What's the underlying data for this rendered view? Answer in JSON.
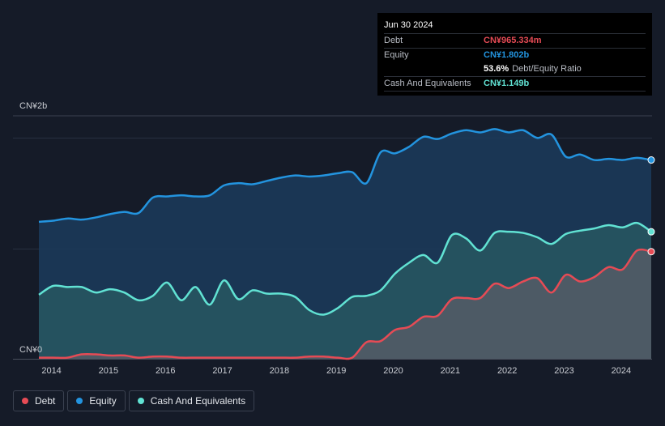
{
  "colors": {
    "debt": "#e64b55",
    "equity": "#2394df",
    "cash": "#61e2d3",
    "background": "#151b28"
  },
  "tooltip": {
    "date": "Jun 30 2024",
    "debt_label": "Debt",
    "debt_value": "CN¥965.334m",
    "equity_label": "Equity",
    "equity_value": "CN¥1.802b",
    "ratio_value": "53.6%",
    "ratio_label": "Debt/Equity Ratio",
    "cash_label": "Cash And Equivalents",
    "cash_value": "CN¥1.149b"
  },
  "legend": {
    "debt": "Debt",
    "equity": "Equity",
    "cash": "Cash And Equivalents"
  },
  "chart_data": {
    "type": "area",
    "title": "",
    "xlabel": "",
    "ylabel": "CN¥",
    "x_range": [
      2013.75,
      2024.5
    ],
    "ylim": [
      0,
      2.2
    ],
    "y_tick_labels": [
      {
        "value": 0,
        "label": "CN¥0"
      },
      {
        "value": 2,
        "label": "CN¥2b"
      }
    ],
    "x_ticks": [
      {
        "value": 2014,
        "label": "2014"
      },
      {
        "value": 2015,
        "label": "2015"
      },
      {
        "value": 2016,
        "label": "2016"
      },
      {
        "value": 2017,
        "label": "2017"
      },
      {
        "value": 2018,
        "label": "2018"
      },
      {
        "value": 2019,
        "label": "2019"
      },
      {
        "value": 2020,
        "label": "2020"
      },
      {
        "value": 2021,
        "label": "2021"
      },
      {
        "value": 2022,
        "label": "2022"
      },
      {
        "value": 2023,
        "label": "2023"
      },
      {
        "value": 2024,
        "label": "2024"
      }
    ],
    "gridlines": [
      0,
      1,
      2
    ],
    "units": "CN¥ billions",
    "series": [
      {
        "name": "Equity",
        "key": "equity",
        "points": [
          [
            2013.75,
            1.24
          ],
          [
            2014.0,
            1.25
          ],
          [
            2014.25,
            1.27
          ],
          [
            2014.5,
            1.26
          ],
          [
            2014.75,
            1.28
          ],
          [
            2015.0,
            1.31
          ],
          [
            2015.25,
            1.33
          ],
          [
            2015.5,
            1.32
          ],
          [
            2015.75,
            1.46
          ],
          [
            2016.0,
            1.47
          ],
          [
            2016.25,
            1.48
          ],
          [
            2016.5,
            1.47
          ],
          [
            2016.75,
            1.48
          ],
          [
            2017.0,
            1.57
          ],
          [
            2017.25,
            1.59
          ],
          [
            2017.5,
            1.58
          ],
          [
            2017.75,
            1.61
          ],
          [
            2018.0,
            1.64
          ],
          [
            2018.25,
            1.66
          ],
          [
            2018.5,
            1.65
          ],
          [
            2018.75,
            1.66
          ],
          [
            2019.0,
            1.68
          ],
          [
            2019.25,
            1.69
          ],
          [
            2019.5,
            1.59
          ],
          [
            2019.75,
            1.87
          ],
          [
            2020.0,
            1.86
          ],
          [
            2020.25,
            1.92
          ],
          [
            2020.5,
            2.01
          ],
          [
            2020.75,
            1.99
          ],
          [
            2021.0,
            2.04
          ],
          [
            2021.25,
            2.07
          ],
          [
            2021.5,
            2.05
          ],
          [
            2021.75,
            2.08
          ],
          [
            2022.0,
            2.05
          ],
          [
            2022.25,
            2.07
          ],
          [
            2022.5,
            2.0
          ],
          [
            2022.75,
            2.03
          ],
          [
            2023.0,
            1.83
          ],
          [
            2023.25,
            1.85
          ],
          [
            2023.5,
            1.8
          ],
          [
            2023.75,
            1.81
          ],
          [
            2024.0,
            1.8
          ],
          [
            2024.25,
            1.82
          ],
          [
            2024.5,
            1.8
          ]
        ]
      },
      {
        "name": "Cash And Equivalents",
        "key": "cash",
        "points": [
          [
            2013.75,
            0.58
          ],
          [
            2014.0,
            0.66
          ],
          [
            2014.25,
            0.65
          ],
          [
            2014.5,
            0.65
          ],
          [
            2014.75,
            0.6
          ],
          [
            2015.0,
            0.63
          ],
          [
            2015.25,
            0.6
          ],
          [
            2015.5,
            0.53
          ],
          [
            2015.75,
            0.57
          ],
          [
            2016.0,
            0.69
          ],
          [
            2016.25,
            0.53
          ],
          [
            2016.5,
            0.65
          ],
          [
            2016.75,
            0.49
          ],
          [
            2017.0,
            0.71
          ],
          [
            2017.25,
            0.54
          ],
          [
            2017.5,
            0.62
          ],
          [
            2017.75,
            0.59
          ],
          [
            2018.0,
            0.59
          ],
          [
            2018.25,
            0.56
          ],
          [
            2018.5,
            0.44
          ],
          [
            2018.75,
            0.4
          ],
          [
            2019.0,
            0.46
          ],
          [
            2019.25,
            0.56
          ],
          [
            2019.5,
            0.57
          ],
          [
            2019.75,
            0.62
          ],
          [
            2020.0,
            0.77
          ],
          [
            2020.25,
            0.87
          ],
          [
            2020.5,
            0.94
          ],
          [
            2020.75,
            0.87
          ],
          [
            2021.0,
            1.12
          ],
          [
            2021.25,
            1.09
          ],
          [
            2021.5,
            0.98
          ],
          [
            2021.75,
            1.14
          ],
          [
            2022.0,
            1.15
          ],
          [
            2022.25,
            1.14
          ],
          [
            2022.5,
            1.1
          ],
          [
            2022.75,
            1.04
          ],
          [
            2023.0,
            1.13
          ],
          [
            2023.25,
            1.16
          ],
          [
            2023.5,
            1.18
          ],
          [
            2023.75,
            1.21
          ],
          [
            2024.0,
            1.19
          ],
          [
            2024.25,
            1.23
          ],
          [
            2024.5,
            1.15
          ]
        ]
      },
      {
        "name": "Debt",
        "key": "debt",
        "points": [
          [
            2013.75,
            0.01
          ],
          [
            2014.0,
            0.01
          ],
          [
            2014.25,
            0.01
          ],
          [
            2014.5,
            0.04
          ],
          [
            2014.75,
            0.04
          ],
          [
            2015.0,
            0.03
          ],
          [
            2015.25,
            0.03
          ],
          [
            2015.5,
            0.01
          ],
          [
            2015.75,
            0.02
          ],
          [
            2016.0,
            0.02
          ],
          [
            2016.25,
            0.01
          ],
          [
            2016.5,
            0.01
          ],
          [
            2016.75,
            0.01
          ],
          [
            2017.0,
            0.01
          ],
          [
            2017.25,
            0.01
          ],
          [
            2017.5,
            0.01
          ],
          [
            2017.75,
            0.01
          ],
          [
            2018.0,
            0.01
          ],
          [
            2018.25,
            0.01
          ],
          [
            2018.5,
            0.02
          ],
          [
            2018.75,
            0.02
          ],
          [
            2019.0,
            0.01
          ],
          [
            2019.25,
            0.01
          ],
          [
            2019.5,
            0.15
          ],
          [
            2019.75,
            0.16
          ],
          [
            2020.0,
            0.26
          ],
          [
            2020.25,
            0.29
          ],
          [
            2020.5,
            0.38
          ],
          [
            2020.75,
            0.39
          ],
          [
            2021.0,
            0.54
          ],
          [
            2021.25,
            0.55
          ],
          [
            2021.5,
            0.55
          ],
          [
            2021.75,
            0.68
          ],
          [
            2022.0,
            0.64
          ],
          [
            2022.25,
            0.7
          ],
          [
            2022.5,
            0.73
          ],
          [
            2022.75,
            0.6
          ],
          [
            2023.0,
            0.76
          ],
          [
            2023.25,
            0.7
          ],
          [
            2023.5,
            0.74
          ],
          [
            2023.75,
            0.83
          ],
          [
            2024.0,
            0.81
          ],
          [
            2024.25,
            0.98
          ],
          [
            2024.5,
            0.97
          ]
        ]
      }
    ]
  }
}
